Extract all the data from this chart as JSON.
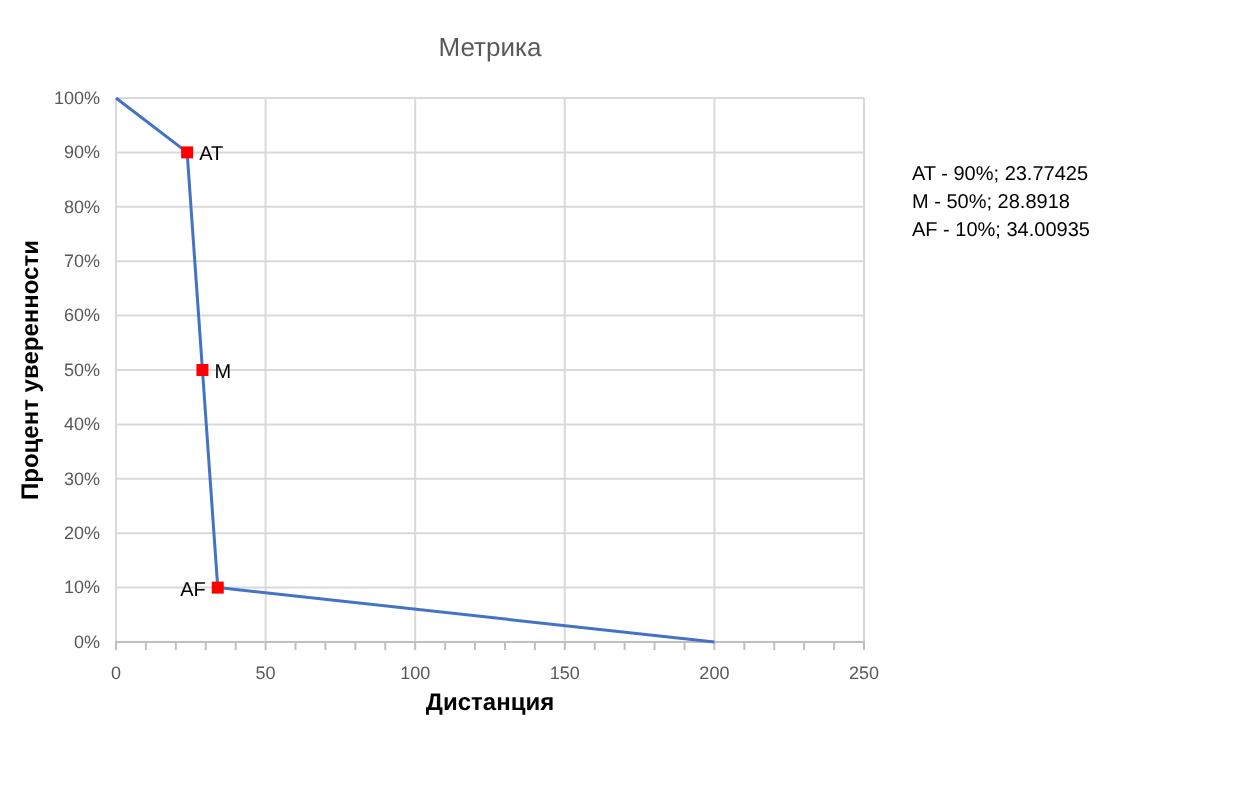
{
  "chart_data": {
    "type": "line",
    "title": "Метрика",
    "xlabel": "Дистанция",
    "ylabel": "Процент уверенности",
    "series": [
      {
        "color": "#4472c4",
        "x": [
          0,
          23.77425,
          28.8918,
          34.00935,
          200
        ],
        "values": [
          100,
          90,
          50,
          10,
          0
        ],
        "marker": "none"
      },
      {
        "type": "scatter",
        "color": "#ff0000",
        "x": [
          23.77425,
          28.8918,
          34.00935
        ],
        "values": [
          90,
          50,
          10
        ],
        "marker": "square"
      }
    ],
    "xlim": [
      0,
      250
    ],
    "xticks": [
      0,
      {
        "value": 10,
        "label": null
      },
      {
        "value": 20,
        "label": null
      },
      {
        "value": 30,
        "label": null
      },
      {
        "value": 40,
        "label": null
      },
      50,
      {
        "value": 60,
        "label": null
      },
      {
        "value": 70,
        "label": null
      },
      {
        "value": 80,
        "label": null
      },
      {
        "value": 90,
        "label": null
      },
      100,
      {
        "value": 110,
        "label": null
      },
      {
        "value": 120,
        "label": null
      },
      {
        "value": 130,
        "label": null
      },
      {
        "value": 140,
        "label": null
      },
      150,
      {
        "value": 160,
        "label": null
      },
      {
        "value": 170,
        "label": null
      },
      {
        "value": 180,
        "label": null
      },
      {
        "value": 190,
        "label": null
      },
      200,
      {
        "value": 210,
        "label": null
      },
      {
        "value": 220,
        "label": null
      },
      {
        "value": 230,
        "label": null
      },
      {
        "value": 240,
        "label": null
      },
      250
    ],
    "ylim": [
      0,
      100
    ],
    "yticks": [
      {
        "value": 0,
        "label": "0%"
      },
      {
        "value": 10,
        "label": "10%"
      },
      {
        "value": 20,
        "label": "20%"
      },
      {
        "value": 30,
        "label": "30%"
      },
      {
        "value": 40,
        "label": "40%"
      },
      {
        "value": 50,
        "label": "50%"
      },
      {
        "value": 60,
        "label": "60%"
      },
      {
        "value": 70,
        "label": "70%"
      },
      {
        "value": 80,
        "label": "80%"
      },
      {
        "value": 90,
        "label": "90%"
      },
      {
        "value": 100,
        "label": "100%"
      }
    ],
    "grid": true,
    "annotations": [
      {
        "text": "AT",
        "x": 23.77425,
        "y": 90
      },
      {
        "text": "M",
        "x": 28.8918,
        "y": 50
      },
      {
        "text": "AF",
        "x": 34.00935,
        "y": 10
      },
      "AT - 90%; 23.77425",
      "M - 50%; 28.8918",
      "AF - 10%; 34.00935"
    ]
  }
}
